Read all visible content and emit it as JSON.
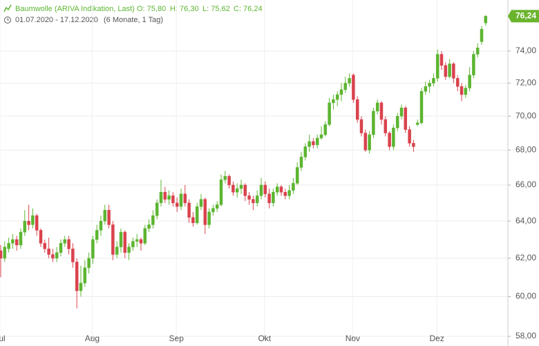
{
  "chart_data": {
    "type": "candlestick",
    "header": {
      "name": "Baumwolle (ARIVA Indikation, Last)",
      "open": "O: 75,80",
      "high": "H: 76,30",
      "low": "L: 75,62",
      "close": "C: 76,24",
      "range": "01.07.2020 - 17.12.2020",
      "period": "(6 Monate, 1 Tag)"
    },
    "last_price": {
      "value": 76.24,
      "label": "76,24"
    },
    "log_scale": true,
    "grid": true,
    "up_color": "#5cb531",
    "down_color": "#d9434d",
    "ylim": [
      58,
      77.3
    ],
    "yticks": [
      {
        "value": 58,
        "label": "58,00"
      },
      {
        "value": 60,
        "label": "60,00"
      },
      {
        "value": 62,
        "label": "62,00"
      },
      {
        "value": 64,
        "label": "64,00"
      },
      {
        "value": 66,
        "label": "66,00"
      },
      {
        "value": 68,
        "label": "68,00"
      },
      {
        "value": 70,
        "label": "70,00"
      },
      {
        "value": 72,
        "label": "72,00"
      },
      {
        "value": 74,
        "label": "74,00"
      }
    ],
    "categories": [
      "Jul",
      null,
      null,
      null,
      null,
      null,
      null,
      null,
      null,
      null,
      null,
      null,
      null,
      null,
      null,
      null,
      null,
      null,
      null,
      null,
      null,
      null,
      null,
      "Aug",
      null,
      null,
      null,
      null,
      null,
      null,
      null,
      null,
      null,
      null,
      null,
      null,
      null,
      null,
      null,
      null,
      null,
      null,
      null,
      null,
      "Sep",
      null,
      null,
      null,
      null,
      null,
      null,
      null,
      null,
      null,
      null,
      null,
      null,
      null,
      null,
      null,
      null,
      null,
      null,
      null,
      null,
      null,
      "Okt",
      null,
      null,
      null,
      null,
      null,
      null,
      null,
      null,
      null,
      null,
      null,
      null,
      null,
      null,
      null,
      null,
      null,
      null,
      null,
      null,
      null,
      "Nov",
      null,
      null,
      null,
      null,
      null,
      null,
      null,
      null,
      null,
      null,
      null,
      null,
      null,
      null,
      null,
      null,
      null,
      null,
      null,
      null,
      "Dez",
      null,
      null,
      null,
      null,
      null,
      null,
      null,
      null,
      null,
      null,
      null,
      null
    ],
    "ohlc": [
      [
        62.4,
        62.7,
        61.0,
        62.0
      ],
      [
        62.0,
        62.9,
        61.8,
        62.6
      ],
      [
        62.5,
        63.1,
        62.3,
        62.8
      ],
      [
        62.8,
        63.3,
        62.5,
        63.0
      ],
      [
        63.0,
        63.2,
        62.4,
        62.7
      ],
      [
        62.7,
        63.6,
        62.5,
        63.4
      ],
      [
        63.4,
        64.6,
        63.2,
        64.0
      ],
      [
        64.0,
        64.9,
        63.5,
        63.8
      ],
      [
        63.8,
        64.7,
        63.6,
        64.3
      ],
      [
        64.3,
        64.4,
        63.2,
        63.5
      ],
      [
        63.5,
        63.6,
        62.6,
        62.8
      ],
      [
        62.8,
        63.0,
        62.3,
        62.5
      ],
      [
        62.5,
        63.1,
        62.0,
        62.2
      ],
      [
        62.2,
        62.5,
        61.8,
        62.0
      ],
      [
        62.0,
        62.6,
        61.8,
        62.3
      ],
      [
        62.3,
        63.0,
        62.1,
        62.8
      ],
      [
        62.8,
        63.2,
        62.6,
        63.0
      ],
      [
        63.0,
        63.2,
        62.2,
        62.5
      ],
      [
        62.5,
        62.8,
        61.5,
        61.8
      ],
      [
        61.8,
        62.0,
        59.4,
        60.3
      ],
      [
        60.3,
        61.6,
        60.0,
        60.7
      ],
      [
        60.7,
        61.9,
        60.5,
        61.5
      ],
      [
        61.5,
        62.3,
        61.2,
        62.0
      ],
      [
        62.0,
        63.2,
        61.7,
        63.0
      ],
      [
        63.0,
        63.8,
        62.8,
        63.5
      ],
      [
        63.5,
        64.3,
        63.2,
        64.0
      ],
      [
        64.0,
        64.9,
        63.8,
        64.6
      ],
      [
        64.6,
        64.9,
        63.6,
        63.8
      ],
      [
        63.8,
        64.0,
        61.9,
        62.2
      ],
      [
        62.2,
        62.9,
        62.0,
        62.6
      ],
      [
        62.6,
        63.6,
        62.3,
        63.4
      ],
      [
        63.4,
        63.5,
        62.0,
        62.3
      ],
      [
        62.3,
        62.8,
        61.9,
        62.6
      ],
      [
        62.6,
        63.1,
        62.4,
        62.9
      ],
      [
        62.9,
        63.3,
        62.6,
        63.0
      ],
      [
        63.0,
        63.1,
        62.4,
        62.8
      ],
      [
        62.8,
        63.8,
        62.7,
        63.6
      ],
      [
        63.6,
        64.1,
        63.4,
        63.8
      ],
      [
        63.8,
        64.6,
        63.6,
        64.3
      ],
      [
        64.3,
        65.2,
        64.1,
        65.0
      ],
      [
        65.0,
        66.3,
        64.8,
        65.6
      ],
      [
        65.6,
        65.9,
        65.0,
        65.2
      ],
      [
        65.2,
        65.7,
        64.9,
        65.4
      ],
      [
        65.4,
        65.6,
        64.8,
        65.0
      ],
      [
        65.0,
        65.3,
        64.5,
        64.8
      ],
      [
        64.8,
        65.8,
        64.6,
        65.5
      ],
      [
        65.5,
        66.0,
        64.8,
        65.0
      ],
      [
        65.0,
        65.2,
        63.9,
        64.2
      ],
      [
        64.2,
        64.5,
        63.7,
        63.9
      ],
      [
        63.9,
        65.0,
        63.8,
        64.8
      ],
      [
        64.8,
        65.5,
        64.6,
        65.2
      ],
      [
        65.2,
        65.3,
        63.3,
        63.8
      ],
      [
        63.8,
        64.7,
        63.6,
        64.5
      ],
      [
        64.5,
        64.9,
        64.3,
        64.7
      ],
      [
        64.7,
        65.1,
        64.5,
        64.9
      ],
      [
        64.9,
        66.6,
        64.8,
        66.3
      ],
      [
        66.3,
        66.8,
        66.1,
        66.5
      ],
      [
        66.5,
        66.6,
        65.8,
        66.0
      ],
      [
        66.0,
        66.2,
        65.4,
        65.6
      ],
      [
        65.6,
        66.1,
        65.3,
        65.8
      ],
      [
        65.8,
        66.3,
        65.5,
        66.0
      ],
      [
        66.0,
        66.1,
        65.1,
        65.4
      ],
      [
        65.4,
        65.6,
        64.9,
        65.2
      ],
      [
        65.2,
        65.4,
        64.6,
        65.0
      ],
      [
        65.0,
        65.7,
        64.8,
        65.4
      ],
      [
        65.4,
        66.4,
        65.2,
        66.0
      ],
      [
        66.0,
        66.2,
        65.3,
        65.5
      ],
      [
        65.5,
        65.8,
        64.7,
        65.0
      ],
      [
        65.0,
        65.8,
        64.8,
        65.6
      ],
      [
        65.6,
        66.1,
        65.4,
        65.9
      ],
      [
        65.9,
        66.0,
        65.4,
        65.6
      ],
      [
        65.6,
        65.8,
        65.2,
        65.4
      ],
      [
        65.4,
        66.0,
        65.2,
        65.7
      ],
      [
        65.7,
        66.4,
        65.5,
        66.1
      ],
      [
        66.1,
        67.3,
        66.0,
        67.0
      ],
      [
        67.0,
        67.9,
        66.8,
        67.6
      ],
      [
        67.6,
        68.4,
        67.4,
        68.2
      ],
      [
        68.2,
        68.9,
        67.9,
        68.5
      ],
      [
        68.5,
        68.7,
        68.1,
        68.3
      ],
      [
        68.3,
        68.9,
        68.1,
        68.7
      ],
      [
        68.7,
        69.4,
        68.6,
        68.9
      ],
      [
        68.9,
        69.7,
        68.8,
        69.5
      ],
      [
        69.5,
        71.1,
        69.4,
        70.8
      ],
      [
        70.8,
        71.3,
        70.4,
        71.0
      ],
      [
        71.0,
        71.5,
        70.6,
        71.3
      ],
      [
        71.3,
        72.0,
        70.9,
        71.6
      ],
      [
        71.6,
        72.4,
        71.4,
        72.0
      ],
      [
        72.0,
        72.6,
        71.8,
        72.3
      ],
      [
        72.5,
        72.6,
        70.8,
        71.0
      ],
      [
        71.0,
        71.2,
        69.6,
        69.8
      ],
      [
        69.8,
        70.0,
        68.8,
        69.0
      ],
      [
        69.0,
        69.2,
        67.9,
        68.0
      ],
      [
        68.0,
        69.1,
        67.8,
        68.9
      ],
      [
        68.9,
        70.5,
        68.7,
        70.3
      ],
      [
        70.3,
        71.0,
        70.1,
        70.8
      ],
      [
        70.8,
        70.9,
        69.5,
        69.8
      ],
      [
        69.8,
        70.0,
        68.8,
        69.0
      ],
      [
        69.0,
        69.1,
        68.0,
        68.2
      ],
      [
        68.2,
        69.5,
        68.0,
        69.3
      ],
      [
        69.3,
        70.2,
        69.1,
        70.0
      ],
      [
        70.0,
        70.7,
        69.8,
        70.5
      ],
      [
        70.5,
        70.6,
        69.0,
        69.2
      ],
      [
        69.2,
        69.4,
        68.2,
        68.4
      ],
      [
        68.4,
        68.6,
        67.9,
        68.2
      ],
      [
        69.5,
        69.8,
        69.4,
        69.6
      ],
      [
        69.6,
        71.7,
        69.5,
        71.5
      ],
      [
        71.5,
        72.1,
        71.3,
        71.8
      ],
      [
        71.8,
        72.2,
        71.4,
        72.0
      ],
      [
        72.0,
        72.6,
        71.8,
        72.3
      ],
      [
        72.3,
        74.1,
        72.1,
        73.8
      ],
      [
        73.8,
        74.0,
        72.8,
        73.1
      ],
      [
        73.1,
        73.3,
        72.2,
        72.4
      ],
      [
        72.4,
        73.5,
        72.3,
        73.2
      ],
      [
        73.2,
        73.3,
        72.0,
        72.3
      ],
      [
        72.3,
        72.5,
        71.5,
        71.8
      ],
      [
        71.8,
        72.0,
        70.9,
        71.3
      ],
      [
        71.3,
        71.9,
        71.1,
        71.7
      ],
      [
        71.7,
        73.0,
        71.5,
        72.5
      ],
      [
        72.5,
        74.0,
        72.3,
        73.8
      ],
      [
        73.8,
        74.5,
        73.6,
        74.2
      ],
      [
        74.6,
        75.6,
        74.4,
        75.4
      ],
      [
        75.8,
        76.3,
        75.62,
        76.24
      ]
    ]
  }
}
